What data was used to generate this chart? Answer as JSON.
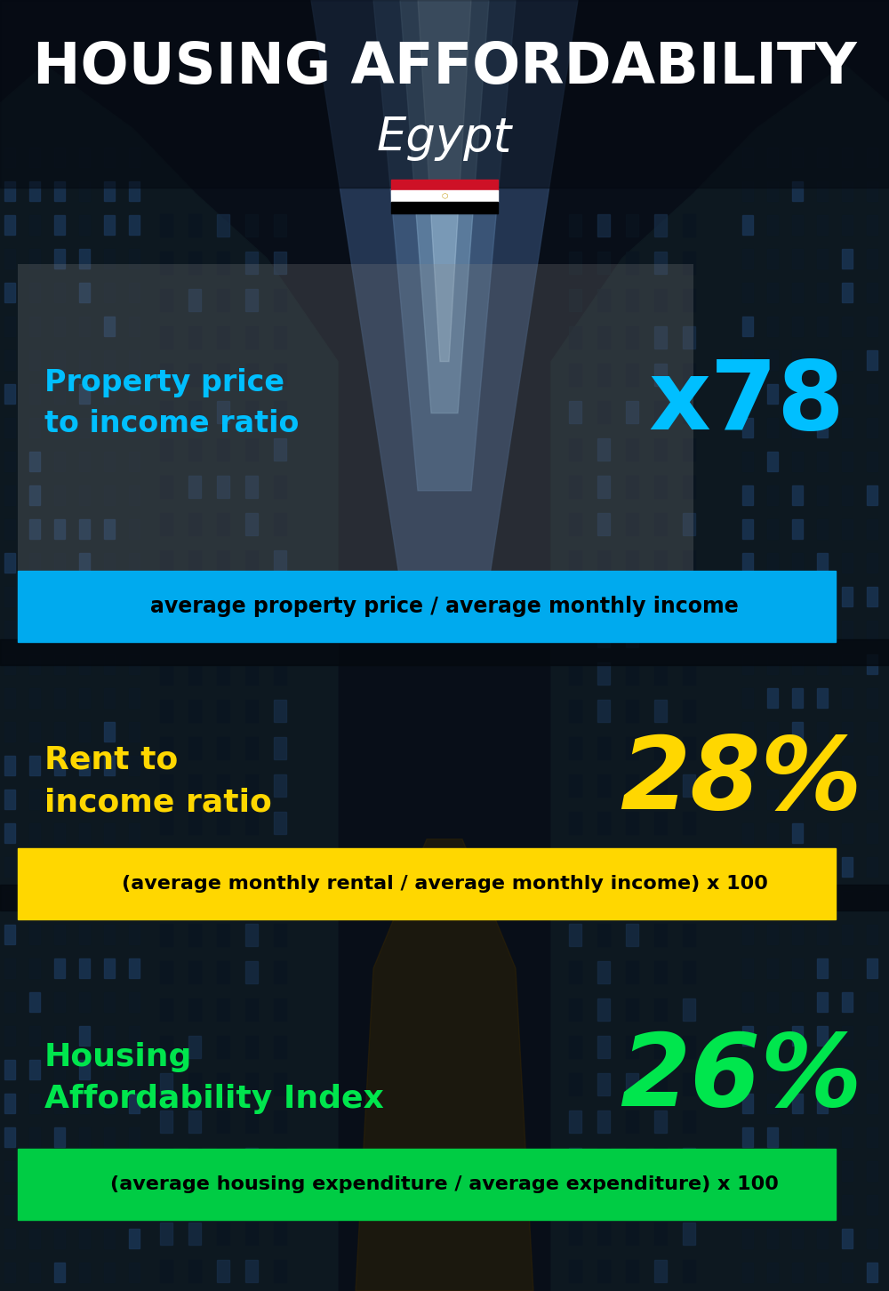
{
  "title_line1": "HOUSING AFFORDABILITY",
  "title_line2": "Egypt",
  "bg_color": "#0a1220",
  "title1_color": "#ffffff",
  "title2_color": "#ffffff",
  "section1_label": "Property price\nto income ratio",
  "section1_value": "x78",
  "section1_label_color": "#00bfff",
  "section1_value_color": "#00bfff",
  "section1_note": "average property price / average monthly income",
  "section1_note_bg": "#00aaee",
  "section1_note_color": "#000000",
  "section2_label": "Rent to\nincome ratio",
  "section2_value": "28%",
  "section2_label_color": "#ffd700",
  "section2_value_color": "#ffd700",
  "section2_note": "(average monthly rental / average monthly income) x 100",
  "section2_note_bg": "#ffd700",
  "section2_note_color": "#000000",
  "section3_label": "Housing\nAffordability Index",
  "section3_value": "26%",
  "section3_label_color": "#00e64d",
  "section3_value_color": "#00e64d",
  "section3_note": "(average housing expenditure / average expenditure) x 100",
  "section3_note_bg": "#00cc44",
  "section3_note_color": "#000000",
  "flag_red": "#ce1126",
  "flag_white": "#ffffff",
  "flag_black": "#000000",
  "flag_gold": "#c09300"
}
